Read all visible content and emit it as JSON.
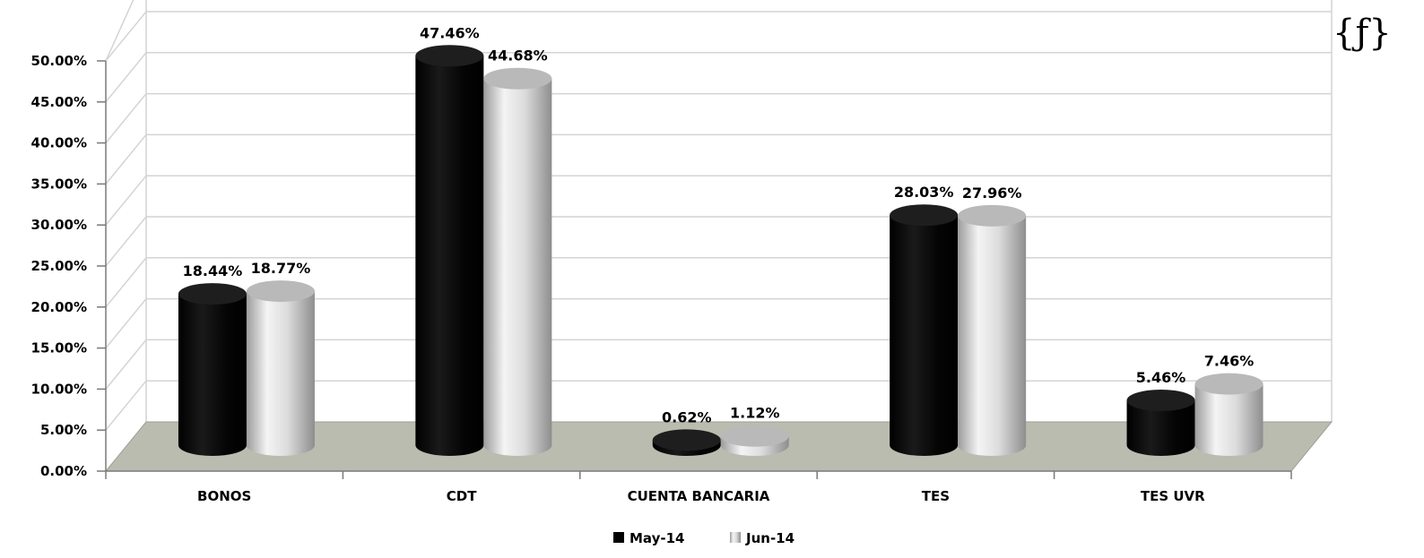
{
  "chart_data": {
    "type": "bar",
    "categories": [
      "BONOS",
      "CDT",
      "CUENTA BANCARIA",
      "TES",
      "TES UVR"
    ],
    "series": [
      {
        "name": "May-14",
        "values": [
          18.44,
          47.46,
          0.62,
          28.03,
          5.46
        ],
        "labels": [
          "18.44%",
          "47.46%",
          "0.62%",
          "28.03%",
          "5.46%"
        ]
      },
      {
        "name": "Jun-14",
        "values": [
          18.77,
          44.68,
          1.12,
          27.96,
          7.46
        ],
        "labels": [
          "18.77%",
          "44.68%",
          "1.12%",
          "27.96%",
          "7.46%"
        ]
      }
    ],
    "y_ticks": [
      "0.00%",
      "5.00%",
      "10.00%",
      "15.00%",
      "20.00%",
      "25.00%",
      "30.00%",
      "35.00%",
      "40.00%",
      "45.00%",
      "50.00%"
    ],
    "ylim": [
      0,
      50
    ],
    "title": "",
    "xlabel": "",
    "ylabel": "",
    "grid": true,
    "legend_position": "bottom",
    "style": "3d-cylinder",
    "colors": {
      "May-14": "#000000",
      "Jun-14": "#c8c8c8",
      "floor": "#bbbcb0",
      "grid": "#d4d4d4"
    }
  },
  "logo": {
    "text": "{ƒ}"
  }
}
